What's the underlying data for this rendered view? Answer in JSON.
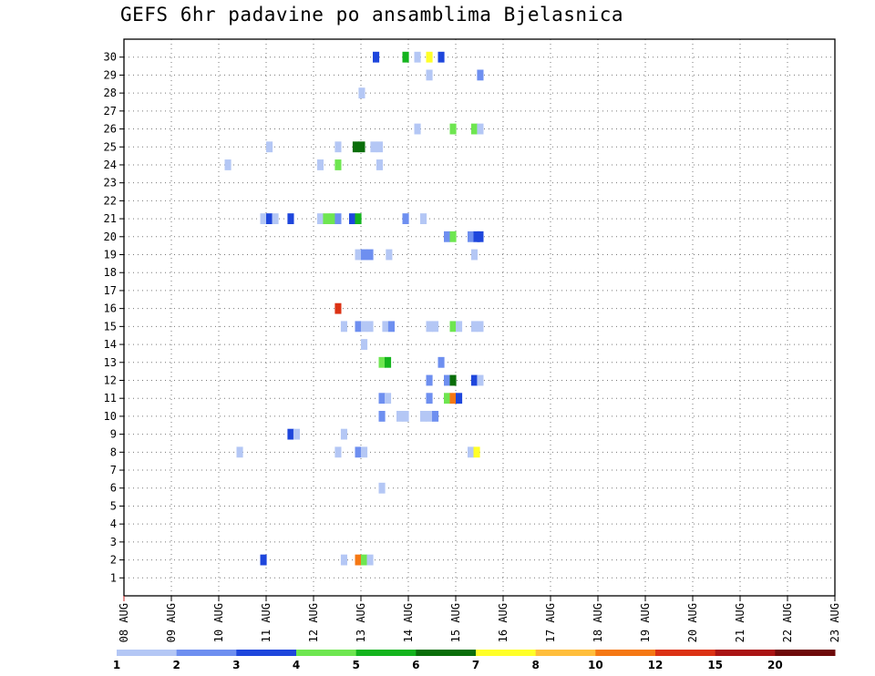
{
  "chart_data": {
    "type": "heatmap",
    "title": "GEFS 6hr padavine po ansamblima Bjelasnica",
    "xlabel": "",
    "ylabel": "",
    "x_tick_labels": [
      "08 AUG",
      "09 AUG",
      "10 AUG",
      "11 AUG",
      "12 AUG",
      "13 AUG",
      "14 AUG",
      "15 AUG",
      "16 AUG",
      "17 AUG",
      "18 AUG",
      "19 AUG",
      "20 AUG",
      "21 AUG",
      "22 AUG",
      "23 AUG"
    ],
    "x_range_steps": [
      0,
      60
    ],
    "steps_per_day": 4,
    "y_tick_labels": [
      "1",
      "2",
      "3",
      "4",
      "5",
      "6",
      "7",
      "8",
      "9",
      "10",
      "11",
      "12",
      "13",
      "14",
      "15",
      "16",
      "17",
      "18",
      "19",
      "20",
      "21",
      "22",
      "23",
      "24",
      "25",
      "26",
      "27",
      "28",
      "29",
      "30"
    ],
    "y_range": [
      0,
      30
    ],
    "grid": true,
    "color_scale": {
      "colors": [
        "#b4c7f5",
        "#6e8ff0",
        "#1e46dc",
        "#6ee650",
        "#14b41e",
        "#0a6e0a",
        "#ffff28",
        "#ffbe3c",
        "#f57814",
        "#dc3214",
        "#aa1414",
        "#6e0a0a"
      ],
      "labels": [
        "1",
        "2",
        "3",
        "4",
        "5",
        "6",
        "7",
        "8",
        "10",
        "12",
        "15",
        "20"
      ],
      "label_positions": [
        0,
        1,
        2,
        3,
        4,
        5,
        6,
        7,
        8,
        9,
        10,
        11
      ]
    },
    "cells": [
      {
        "step": 21,
        "member": 30,
        "level": 3
      },
      {
        "step": 23.5,
        "member": 30,
        "level": 5
      },
      {
        "step": 24.5,
        "member": 30,
        "level": 1
      },
      {
        "step": 25.5,
        "member": 30,
        "level": 7
      },
      {
        "step": 26.5,
        "member": 30,
        "level": 3
      },
      {
        "step": 25.5,
        "member": 29,
        "level": 1
      },
      {
        "step": 29.8,
        "member": 29,
        "level": 2
      },
      {
        "step": 19.8,
        "member": 28,
        "level": 1
      },
      {
        "step": 24.5,
        "member": 26,
        "level": 1
      },
      {
        "step": 27.5,
        "member": 26,
        "level": 4
      },
      {
        "step": 29.3,
        "member": 26,
        "level": 4
      },
      {
        "step": 29.8,
        "member": 26,
        "level": 1
      },
      {
        "step": 12,
        "member": 25,
        "level": 1
      },
      {
        "step": 17.8,
        "member": 25,
        "level": 1
      },
      {
        "step": 19.3,
        "member": 25,
        "level": 6
      },
      {
        "step": 19.8,
        "member": 25,
        "level": 6
      },
      {
        "step": 20.8,
        "member": 25,
        "level": 1
      },
      {
        "step": 21.3,
        "member": 25,
        "level": 1
      },
      {
        "step": 8.5,
        "member": 24,
        "level": 1
      },
      {
        "step": 16.3,
        "member": 24,
        "level": 1
      },
      {
        "step": 17.8,
        "member": 24,
        "level": 4
      },
      {
        "step": 21.3,
        "member": 24,
        "level": 1
      },
      {
        "step": 11.5,
        "member": 21,
        "level": 1
      },
      {
        "step": 12,
        "member": 21,
        "level": 3
      },
      {
        "step": 12.5,
        "member": 21,
        "level": 1
      },
      {
        "step": 13.8,
        "member": 21,
        "level": 3
      },
      {
        "step": 16.3,
        "member": 21,
        "level": 1
      },
      {
        "step": 16.8,
        "member": 21,
        "level": 4
      },
      {
        "step": 17.3,
        "member": 21,
        "level": 4
      },
      {
        "step": 17.8,
        "member": 21,
        "level": 2
      },
      {
        "step": 19,
        "member": 21,
        "level": 3
      },
      {
        "step": 19.5,
        "member": 21,
        "level": 5
      },
      {
        "step": 23.5,
        "member": 21,
        "level": 2
      },
      {
        "step": 25,
        "member": 21,
        "level": 1
      },
      {
        "step": 27,
        "member": 20,
        "level": 2
      },
      {
        "step": 27.5,
        "member": 20,
        "level": 4
      },
      {
        "step": 29,
        "member": 20,
        "level": 2
      },
      {
        "step": 29.5,
        "member": 20,
        "level": 3
      },
      {
        "step": 29.8,
        "member": 20,
        "level": 3
      },
      {
        "step": 19.5,
        "member": 19,
        "level": 1
      },
      {
        "step": 20,
        "member": 19,
        "level": 2
      },
      {
        "step": 20.5,
        "member": 19,
        "level": 2
      },
      {
        "step": 22.1,
        "member": 19,
        "level": 1
      },
      {
        "step": 29.3,
        "member": 19,
        "level": 1
      },
      {
        "step": 17.8,
        "member": 16,
        "level": 10
      },
      {
        "step": 18.3,
        "member": 15,
        "level": 1
      },
      {
        "step": 19.5,
        "member": 15,
        "level": 2
      },
      {
        "step": 20,
        "member": 15,
        "level": 1
      },
      {
        "step": 20.5,
        "member": 15,
        "level": 1
      },
      {
        "step": 21.8,
        "member": 15,
        "level": 1
      },
      {
        "step": 22.3,
        "member": 15,
        "level": 2
      },
      {
        "step": 25.5,
        "member": 15,
        "level": 1
      },
      {
        "step": 26,
        "member": 15,
        "level": 1
      },
      {
        "step": 27.5,
        "member": 15,
        "level": 4
      },
      {
        "step": 28,
        "member": 15,
        "level": 1
      },
      {
        "step": 29.3,
        "member": 15,
        "level": 1
      },
      {
        "step": 29.8,
        "member": 15,
        "level": 1
      },
      {
        "step": 20,
        "member": 14,
        "level": 1
      },
      {
        "step": 21.5,
        "member": 13,
        "level": 4
      },
      {
        "step": 22,
        "member": 13,
        "level": 5
      },
      {
        "step": 26.5,
        "member": 13,
        "level": 2
      },
      {
        "step": 25.5,
        "member": 12,
        "level": 2
      },
      {
        "step": 27,
        "member": 12,
        "level": 2
      },
      {
        "step": 27.5,
        "member": 12,
        "level": 6
      },
      {
        "step": 29.3,
        "member": 12,
        "level": 3
      },
      {
        "step": 29.8,
        "member": 12,
        "level": 1
      },
      {
        "step": 21.5,
        "member": 11,
        "level": 2
      },
      {
        "step": 22,
        "member": 11,
        "level": 1
      },
      {
        "step": 25.5,
        "member": 11,
        "level": 2
      },
      {
        "step": 27,
        "member": 11,
        "level": 4
      },
      {
        "step": 27.5,
        "member": 11,
        "level": 9
      },
      {
        "step": 28,
        "member": 11,
        "level": 3
      },
      {
        "step": 21.5,
        "member": 10,
        "level": 2
      },
      {
        "step": 23,
        "member": 10,
        "level": 1
      },
      {
        "step": 23.5,
        "member": 10,
        "level": 1
      },
      {
        "step": 25,
        "member": 10,
        "level": 1
      },
      {
        "step": 25.5,
        "member": 10,
        "level": 1
      },
      {
        "step": 26,
        "member": 10,
        "level": 2
      },
      {
        "step": 13.8,
        "member": 9,
        "level": 3
      },
      {
        "step": 14.3,
        "member": 9,
        "level": 1
      },
      {
        "step": 18.3,
        "member": 9,
        "level": 1
      },
      {
        "step": 9.5,
        "member": 8,
        "level": 1
      },
      {
        "step": 17.8,
        "member": 8,
        "level": 1
      },
      {
        "step": 19.5,
        "member": 8,
        "level": 2
      },
      {
        "step": 20,
        "member": 8,
        "level": 1
      },
      {
        "step": 29,
        "member": 8,
        "level": 1
      },
      {
        "step": 29.5,
        "member": 8,
        "level": 7
      },
      {
        "step": 21.5,
        "member": 6,
        "level": 1
      },
      {
        "step": 11.5,
        "member": 2,
        "level": 3
      },
      {
        "step": 18.3,
        "member": 2,
        "level": 1
      },
      {
        "step": 19.5,
        "member": 2,
        "level": 9
      },
      {
        "step": 20,
        "member": 2,
        "level": 4
      },
      {
        "step": 20.5,
        "member": 2,
        "level": 1
      }
    ]
  }
}
